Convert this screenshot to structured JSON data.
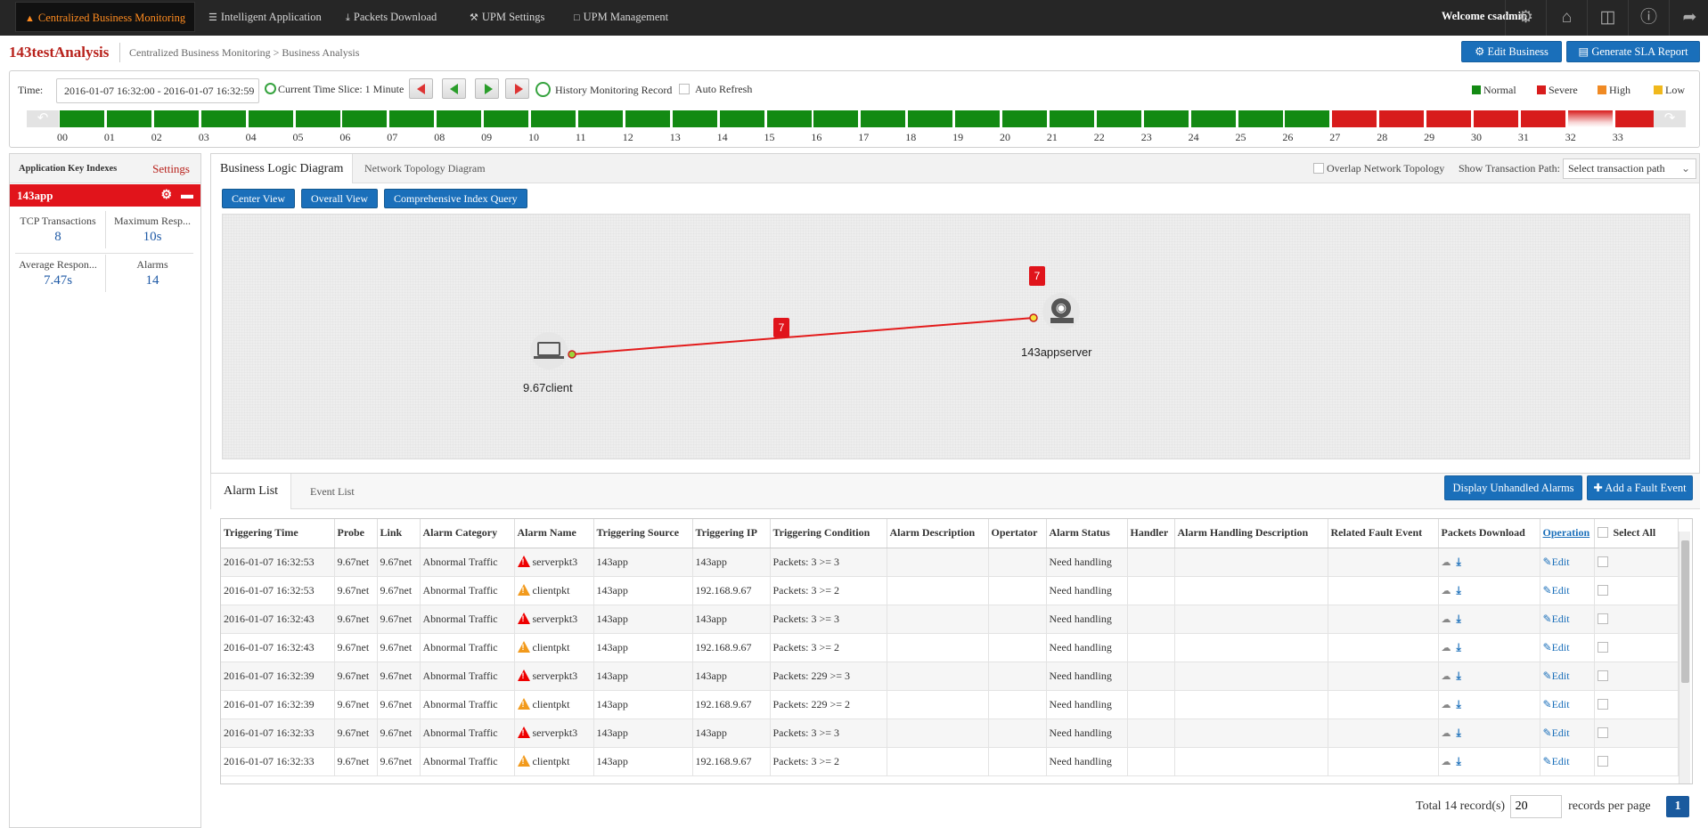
{
  "nav": {
    "items": [
      {
        "label": "Centralized Business Monitoring",
        "icon": "sitemap-icon",
        "active": true
      },
      {
        "label": "Intelligent Application",
        "icon": "list-icon",
        "active": false
      },
      {
        "label": "Packets Download",
        "icon": "download-icon",
        "active": false
      },
      {
        "label": "UPM Settings",
        "icon": "wrench-icon",
        "active": false
      },
      {
        "label": "UPM Management",
        "icon": "monitor-icon",
        "active": false
      }
    ],
    "welcome": "Welcome csadmin"
  },
  "header": {
    "title": "143testAnalysis",
    "breadcrumb": "Centralized Business Monitoring > Business Analysis",
    "edit_button": "Edit Business",
    "sla_button": "Generate SLA Report"
  },
  "time": {
    "label": "Time:",
    "range": "2016-01-07 16:32:00 - 2016-01-07 16:32:59",
    "slice": "Current Time Slice: 1 Minute",
    "history": "History Monitoring Record",
    "auto_refresh": "Auto Refresh",
    "legend": [
      {
        "label": "Normal",
        "color": "#138a13"
      },
      {
        "label": "Severe",
        "color": "#d81c1c"
      },
      {
        "label": "High",
        "color": "#f08a24"
      },
      {
        "label": "Low",
        "color": "#f0b81c"
      }
    ],
    "slots": [
      "00",
      "01",
      "02",
      "03",
      "04",
      "05",
      "06",
      "07",
      "08",
      "09",
      "10",
      "11",
      "12",
      "13",
      "14",
      "15",
      "16",
      "17",
      "18",
      "19",
      "20",
      "21",
      "22",
      "23",
      "24",
      "25",
      "26",
      "27",
      "28",
      "29",
      "30",
      "31",
      "32",
      "33"
    ],
    "slot_status": [
      "normal",
      "normal",
      "normal",
      "normal",
      "normal",
      "normal",
      "normal",
      "normal",
      "normal",
      "normal",
      "normal",
      "normal",
      "normal",
      "normal",
      "normal",
      "normal",
      "normal",
      "normal",
      "normal",
      "normal",
      "normal",
      "normal",
      "normal",
      "normal",
      "normal",
      "normal",
      "normal",
      "severe",
      "severe",
      "severe",
      "severe",
      "severe",
      "current",
      "severe"
    ]
  },
  "left": {
    "title": "Application Key Indexes",
    "settings": "Settings",
    "app": "143app",
    "kpis": [
      {
        "label": "TCP Transactions",
        "value": "8"
      },
      {
        "label": "Maximum Resp...",
        "value": "10s"
      },
      {
        "label": "Average Respon...",
        "value": "7.47s"
      },
      {
        "label": "Alarms",
        "value": "14"
      }
    ]
  },
  "diagram": {
    "tabs": [
      "Business Logic Diagram",
      "Network Topology Diagram"
    ],
    "overlay": "Overlap Network Topology",
    "path_label": "Show Transaction Path:",
    "path_placeholder": "Select transaction path",
    "buttons": [
      "Center View",
      "Overall View",
      "Comprehensive Index Query"
    ],
    "client": "9.67client",
    "server": "143appserver",
    "link_badge": "7",
    "server_badge": "7"
  },
  "alarms": {
    "tabs": [
      "Alarm List",
      "Event List"
    ],
    "unhandled_button": "Display Unhandled Alarms",
    "fault_button": "Add a Fault Event",
    "columns": [
      "Triggering Time",
      "Probe",
      "Link",
      "Alarm Category",
      "Alarm Name",
      "Triggering Source",
      "Triggering IP",
      "Triggering Condition",
      "Alarm Description",
      "Opertator",
      "Alarm Status",
      "Handler",
      "Alarm Handling Description",
      "Related Fault Event",
      "Packets Download",
      "Operation",
      "Select All"
    ],
    "rows": [
      {
        "time": "2016-01-07 16:32:53",
        "probe": "9.67net",
        "link": "9.67net",
        "category": "Abnormal Traffic",
        "severity": "severe",
        "name": "serverpkt3",
        "source": "143app",
        "ip": "143app",
        "condition": "Packets: 3 >= 3",
        "status": "Need handling",
        "edit": "Edit"
      },
      {
        "time": "2016-01-07 16:32:53",
        "probe": "9.67net",
        "link": "9.67net",
        "category": "Abnormal Traffic",
        "severity": "high",
        "name": "clientpkt",
        "source": "143app",
        "ip": "192.168.9.67",
        "condition": "Packets: 3 >= 2",
        "status": "Need handling",
        "edit": "Edit"
      },
      {
        "time": "2016-01-07 16:32:43",
        "probe": "9.67net",
        "link": "9.67net",
        "category": "Abnormal Traffic",
        "severity": "severe",
        "name": "serverpkt3",
        "source": "143app",
        "ip": "143app",
        "condition": "Packets: 3 >= 3",
        "status": "Need handling",
        "edit": "Edit"
      },
      {
        "time": "2016-01-07 16:32:43",
        "probe": "9.67net",
        "link": "9.67net",
        "category": "Abnormal Traffic",
        "severity": "high",
        "name": "clientpkt",
        "source": "143app",
        "ip": "192.168.9.67",
        "condition": "Packets: 3 >= 2",
        "status": "Need handling",
        "edit": "Edit"
      },
      {
        "time": "2016-01-07 16:32:39",
        "probe": "9.67net",
        "link": "9.67net",
        "category": "Abnormal Traffic",
        "severity": "severe",
        "name": "serverpkt3",
        "source": "143app",
        "ip": "143app",
        "condition": "Packets: 229 >= 3",
        "status": "Need handling",
        "edit": "Edit"
      },
      {
        "time": "2016-01-07 16:32:39",
        "probe": "9.67net",
        "link": "9.67net",
        "category": "Abnormal Traffic",
        "severity": "high",
        "name": "clientpkt",
        "source": "143app",
        "ip": "192.168.9.67",
        "condition": "Packets: 229 >= 2",
        "status": "Need handling",
        "edit": "Edit"
      },
      {
        "time": "2016-01-07 16:32:33",
        "probe": "9.67net",
        "link": "9.67net",
        "category": "Abnormal Traffic",
        "severity": "severe",
        "name": "serverpkt3",
        "source": "143app",
        "ip": "143app",
        "condition": "Packets: 3 >= 3",
        "status": "Need handling",
        "edit": "Edit"
      },
      {
        "time": "2016-01-07 16:32:33",
        "probe": "9.67net",
        "link": "9.67net",
        "category": "Abnormal Traffic",
        "severity": "high",
        "name": "clientpkt",
        "source": "143app",
        "ip": "192.168.9.67",
        "condition": "Packets: 3 >= 2",
        "status": "Need handling",
        "edit": "Edit"
      }
    ]
  },
  "pager": {
    "total": "Total 14 record(s)",
    "per_page_value": "20",
    "per_page_label": "records per page",
    "page": "1"
  }
}
